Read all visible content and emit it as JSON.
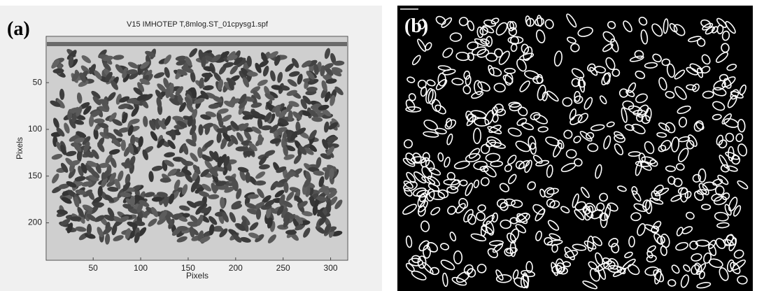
{
  "panels": [
    {
      "label": "(a)",
      "title": "V15 IMHOTEP T,8mlog.ST_01cpysg1.spf",
      "xlabel": "Pixels",
      "ylabel": "Pixels",
      "xlim": [
        0.5,
        318
      ],
      "ylim": [
        0.5,
        240
      ],
      "xticks": [
        50,
        100,
        150,
        200,
        250,
        300
      ],
      "yticks": [
        50,
        100,
        150,
        200
      ]
    },
    {
      "label": "(b)"
    }
  ]
}
